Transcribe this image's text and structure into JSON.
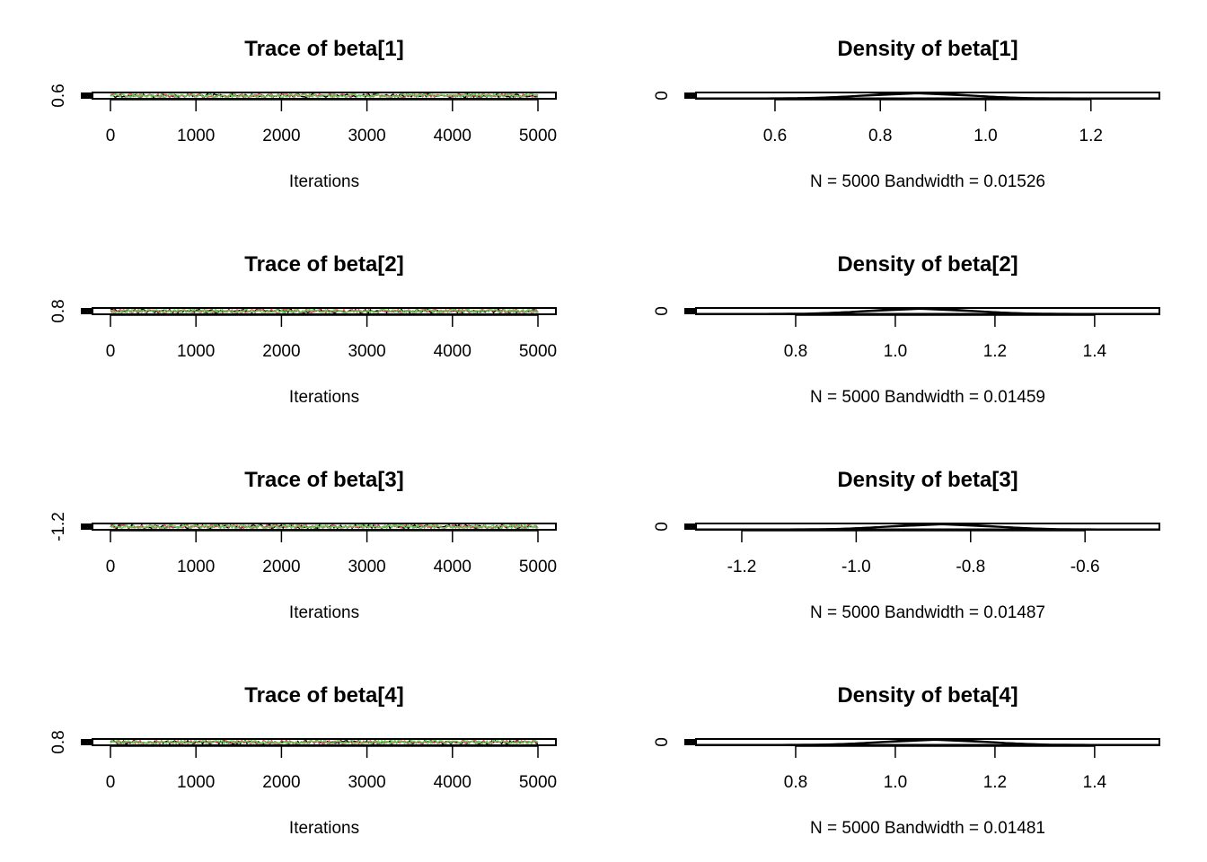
{
  "colors": {
    "series": [
      "#000000",
      "#DF536B",
      "#61D04F"
    ],
    "frame": "#000000",
    "background": "#ffffff"
  },
  "chart_data": [
    {
      "type": "line",
      "title": "Trace of beta[1]",
      "xlabel": "Iterations",
      "ylabel": "",
      "xlim": [
        0,
        5000
      ],
      "x_ticks": [
        "0",
        "1000",
        "2000",
        "3000",
        "4000",
        "5000"
      ],
      "y_ticks": [
        "0.6"
      ],
      "grid": false
    },
    {
      "type": "area",
      "title": "Density of beta[1]",
      "xlabel": "N = 5000   Bandwidth = 0.01526",
      "ylabel": "",
      "xlim": [
        0.45,
        1.33
      ],
      "x_ticks": [
        "0.6",
        "0.8",
        "1.0",
        "1.2"
      ],
      "y_ticks": [
        "0"
      ],
      "peak_x": 0.87,
      "grid": false
    },
    {
      "type": "line",
      "title": "Trace of beta[2]",
      "xlabel": "Iterations",
      "ylabel": "",
      "xlim": [
        0,
        5000
      ],
      "x_ticks": [
        "0",
        "1000",
        "2000",
        "3000",
        "4000",
        "5000"
      ],
      "y_ticks": [
        "0.8"
      ],
      "grid": false
    },
    {
      "type": "area",
      "title": "Density of beta[2]",
      "xlabel": "N = 5000   Bandwidth = 0.01459",
      "ylabel": "",
      "xlim": [
        0.6,
        1.53
      ],
      "x_ticks": [
        "0.8",
        "1.0",
        "1.2",
        "1.4"
      ],
      "y_ticks": [
        "0"
      ],
      "peak_x": 1.05,
      "grid": false
    },
    {
      "type": "line",
      "title": "Trace of beta[3]",
      "xlabel": "Iterations",
      "ylabel": "",
      "xlim": [
        0,
        5000
      ],
      "x_ticks": [
        "0",
        "1000",
        "2000",
        "3000",
        "4000",
        "5000"
      ],
      "y_ticks": [
        "-1.2"
      ],
      "grid": false
    },
    {
      "type": "area",
      "title": "Density of beta[3]",
      "xlabel": "N = 5000   Bandwidth = 0.01487",
      "ylabel": "",
      "xlim": [
        -1.28,
        -0.47
      ],
      "x_ticks": [
        "-1.2",
        "-1.0",
        "-0.8",
        "-0.6"
      ],
      "y_ticks": [
        "0"
      ],
      "peak_x": -0.85,
      "grid": false
    },
    {
      "type": "line",
      "title": "Trace of beta[4]",
      "xlabel": "Iterations",
      "ylabel": "",
      "xlim": [
        0,
        5000
      ],
      "x_ticks": [
        "0",
        "1000",
        "2000",
        "3000",
        "4000",
        "5000"
      ],
      "y_ticks": [
        "0.8"
      ],
      "grid": false
    },
    {
      "type": "area",
      "title": "Density of beta[4]",
      "xlabel": "N = 5000   Bandwidth = 0.01481",
      "ylabel": "",
      "xlim": [
        0.6,
        1.53
      ],
      "x_ticks": [
        "0.8",
        "1.0",
        "1.2",
        "1.4"
      ],
      "y_ticks": [
        "0"
      ],
      "peak_x": 1.08,
      "grid": false
    }
  ]
}
